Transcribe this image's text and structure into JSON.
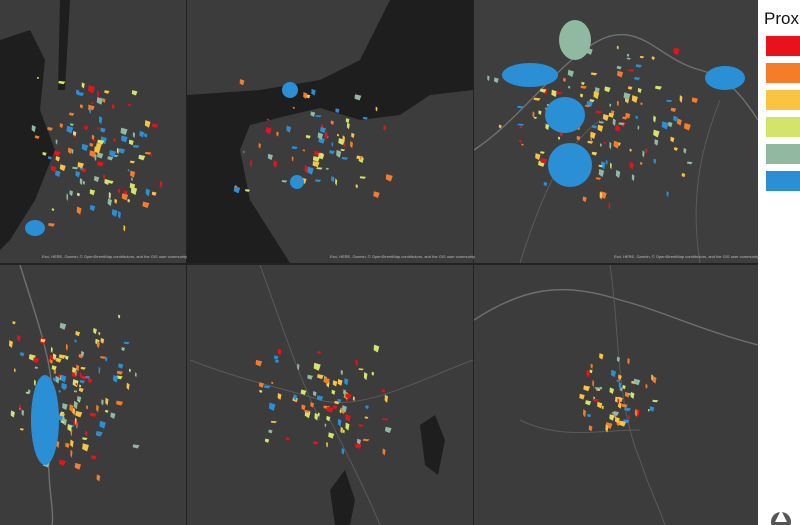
{
  "legend": {
    "title": "Prox",
    "colors": [
      "#e8121a",
      "#f57c28",
      "#fbc342",
      "#d4e36a",
      "#8fb9a0",
      "#2b8fd6"
    ]
  },
  "panels": [
    {
      "attribution": "Esri, HERE, Garmin, © OpenStreetMap contributors, and the GIS user community"
    },
    {
      "attribution": "Esri, HERE, Garmin, © OpenStreetMap contributors, and the GIS user community"
    },
    {
      "attribution": "Esri, HERE, Garmin, © OpenStreetMap contributors, and the GIS user community"
    }
  ]
}
